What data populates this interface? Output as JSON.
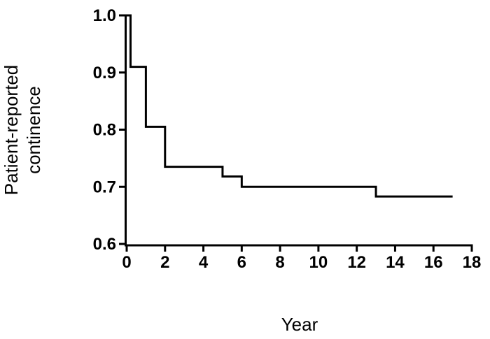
{
  "figure": {
    "background": "#ffffff",
    "foreground": "#000000"
  },
  "chart_data": {
    "type": "line",
    "style": "kaplan-meier-step",
    "title": "",
    "xlabel": "Year",
    "ylabel": "Patient-reported continence",
    "ylabel_lines": [
      "Patient-reported",
      "continence"
    ],
    "xlim": [
      0,
      18
    ],
    "ylim": [
      0.6,
      1.0
    ],
    "x_ticks": [
      0,
      2,
      4,
      6,
      8,
      10,
      12,
      14,
      16,
      18
    ],
    "y_ticks": [
      1.0,
      0.9,
      0.8,
      0.7,
      0.6
    ],
    "grid": false,
    "legend": false,
    "line_color": "#000000",
    "series": [
      {
        "name": "Patient-reported continence",
        "step": "post",
        "x": [
          0,
          0.2,
          1,
          2,
          5,
          6,
          13,
          17
        ],
        "y": [
          1.0,
          0.91,
          0.805,
          0.735,
          0.718,
          0.7,
          0.683,
          0.683
        ]
      }
    ]
  }
}
